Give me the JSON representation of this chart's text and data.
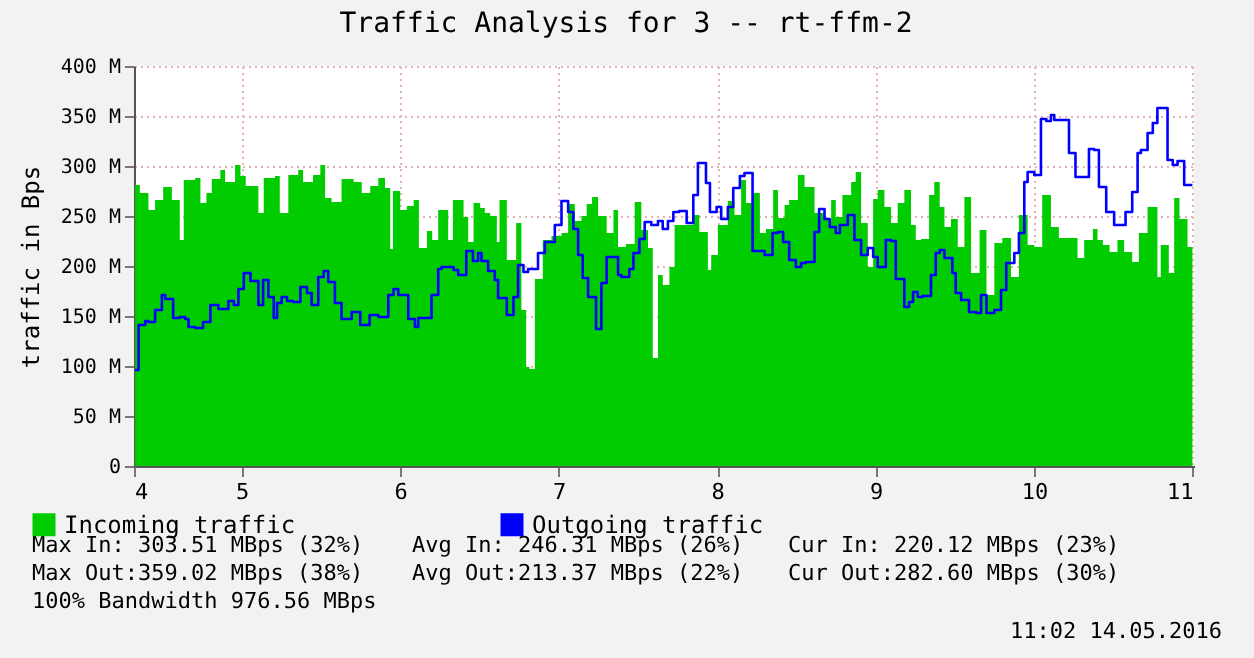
{
  "chart_data": {
    "type": "area",
    "title": "Traffic Analysis for 3 -- rt-ffm-2",
    "ylabel": "traffic in Bps",
    "xlim": [
      4.32,
      11.01
    ],
    "xticks": [
      {
        "value": 4.32,
        "label": "4"
      },
      {
        "value": 5,
        "label": "5"
      },
      {
        "value": 6,
        "label": "6"
      },
      {
        "value": 7,
        "label": "7"
      },
      {
        "value": 8,
        "label": "8"
      },
      {
        "value": 9,
        "label": "9"
      },
      {
        "value": 10,
        "label": "10"
      },
      {
        "value": 11,
        "label": "11"
      }
    ],
    "ylim": [
      0,
      400
    ],
    "yticks": [
      0,
      {
        "value": 50,
        "label": "50 M"
      },
      {
        "value": 100,
        "label": "100 M"
      },
      {
        "value": 150,
        "label": "150 M"
      },
      {
        "value": 200,
        "label": "200 M"
      },
      {
        "value": 250,
        "label": "250 M"
      },
      {
        "value": 300,
        "label": "300 M"
      },
      {
        "value": 350,
        "label": "350 M"
      },
      {
        "value": 400,
        "label": "400 M"
      }
    ],
    "grid": true,
    "legend": "bottom",
    "series": [
      {
        "name": "Incoming traffic",
        "color": "#00cc00",
        "x": [
          4.327,
          4.357,
          4.411,
          4.453,
          4.504,
          4.559,
          4.609,
          4.634,
          4.706,
          4.739,
          4.777,
          4.811,
          4.865,
          4.895,
          4.958,
          4.992,
          5.025,
          5.105,
          5.139,
          5.21,
          5.24,
          5.294,
          5.357,
          5.387,
          5.45,
          5.496,
          5.526,
          5.567,
          5.63,
          5.706,
          5.757,
          5.811,
          5.862,
          5.904,
          5.937,
          5.954,
          6.0,
          6.042,
          6.085,
          6.118,
          6.169,
          6.202,
          6.24,
          6.303,
          6.333,
          6.4,
          6.429,
          6.463,
          6.505,
          6.534,
          6.568,
          6.61,
          6.627,
          6.673,
          6.732,
          6.765,
          6.795,
          6.816,
          6.85,
          6.9,
          6.955,
          7.018,
          7.06,
          7.102,
          7.144,
          7.177,
          7.211,
          7.249,
          7.303,
          7.346,
          7.375,
          7.425,
          7.48,
          7.522,
          7.564,
          7.594,
          7.627,
          7.657,
          7.699,
          7.732,
          7.85,
          7.888,
          7.942,
          7.963,
          8.005,
          8.068,
          8.11,
          8.152,
          8.182,
          8.228,
          8.27,
          8.308,
          8.354,
          8.384,
          8.426,
          8.455,
          8.51,
          8.552,
          8.615,
          8.678,
          8.72,
          8.749,
          8.791,
          8.846,
          8.875,
          8.909,
          8.951,
          8.985,
          9.014,
          9.056,
          9.098,
          9.14,
          9.182,
          9.224,
          9.254,
          9.287,
          9.338,
          9.371,
          9.405,
          9.435,
          9.476,
          9.519,
          9.561,
          9.603,
          9.657,
          9.7,
          9.75,
          9.8,
          9.855,
          9.905,
          9.96,
          10.002,
          10.052,
          10.107,
          10.157,
          10.275,
          10.317,
          10.372,
          10.401,
          10.435,
          10.477,
          10.527,
          10.569,
          10.62,
          10.662,
          10.717,
          10.779,
          10.8,
          10.851,
          10.885,
          10.918,
          10.969,
          11.0
        ],
        "values": [
          281,
          273,
          256,
          266,
          279,
          266,
          226,
          286,
          288,
          263,
          273,
          287,
          296,
          284,
          301,
          290,
          280,
          253,
          288,
          290,
          253,
          291,
          296,
          284,
          291,
          301,
          268,
          264,
          287,
          284,
          273,
          280,
          288,
          278,
          217,
          275,
          256,
          260,
          266,
          218,
          235,
          226,
          256,
          226,
          266,
          249,
          224,
          263,
          258,
          253,
          250,
          224,
          266,
          206,
          243,
          156,
          99,
          97,
          187,
          226,
          230,
          233,
          262,
          245,
          250,
          262,
          269,
          250,
          233,
          256,
          219,
          222,
          264,
          236,
          218,
          108,
          191,
          181,
          199,
          241,
          251,
          234,
          196,
          211,
          241,
          265,
          251,
          286,
          263,
          273,
          233,
          237,
          276,
          248,
          261,
          266,
          291,
          279,
          253,
          246,
          266,
          249,
          271,
          284,
          294,
          243,
          199,
          267,
          276,
          259,
          243,
          263,
          276,
          241,
          226,
          227,
          271,
          284,
          259,
          239,
          247,
          219,
          269,
          193,
          236,
          171,
          223,
          228,
          189,
          251,
          221,
          219,
          271,
          239,
          228,
          208,
          226,
          237,
          226,
          221,
          214,
          226,
          214,
          204,
          233,
          259,
          189,
          221,
          193,
          268,
          247,
          219,
          219
        ]
      },
      {
        "name": "Outgoing traffic",
        "type": "step",
        "color": "#0000ff",
        "x": [
          4.327,
          4.349,
          4.391,
          4.411,
          4.453,
          4.496,
          4.517,
          4.567,
          4.609,
          4.643,
          4.664,
          4.706,
          4.756,
          4.802,
          4.853,
          4.916,
          4.95,
          4.979,
          5.013,
          5.055,
          5.105,
          5.135,
          5.168,
          5.202,
          5.223,
          5.252,
          5.286,
          5.324,
          5.37,
          5.412,
          5.441,
          5.483,
          5.517,
          5.546,
          5.588,
          5.63,
          5.694,
          5.748,
          5.807,
          5.862,
          5.925,
          5.958,
          5.988,
          6.051,
          6.093,
          6.114,
          6.198,
          6.24,
          6.261,
          6.337,
          6.366,
          6.417,
          6.459,
          6.492,
          6.513,
          6.555,
          6.597,
          6.618,
          6.673,
          6.715,
          6.744,
          6.778,
          6.807,
          6.87,
          6.913,
          6.976,
          7.018,
          7.06,
          7.093,
          7.123,
          7.152,
          7.186,
          7.236,
          7.27,
          7.303,
          7.375,
          7.396,
          7.446,
          7.472,
          7.51,
          7.543,
          7.585,
          7.627,
          7.657,
          7.69,
          7.724,
          7.761,
          7.808,
          7.85,
          7.879,
          7.93,
          7.955,
          7.997,
          8.026,
          8.068,
          8.102,
          8.144,
          8.173,
          8.224,
          8.3,
          8.35,
          8.384,
          8.417,
          8.455,
          8.497,
          8.531,
          8.56,
          8.615,
          8.644,
          8.678,
          8.711,
          8.749,
          8.775,
          8.825,
          8.867,
          8.909,
          8.951,
          8.985,
          9.014,
          9.065,
          9.098,
          9.128,
          9.182,
          9.212,
          9.237,
          9.266,
          9.296,
          9.35,
          9.38,
          9.405,
          9.435,
          9.485,
          9.506,
          9.54,
          9.59,
          9.636,
          9.666,
          9.7,
          9.75,
          9.792,
          9.825,
          9.876,
          9.905,
          9.939,
          9.96,
          10.002,
          10.044,
          10.078,
          10.107,
          10.128,
          10.221,
          10.262,
          10.347,
          10.38,
          10.41,
          10.456,
          10.506,
          10.578,
          10.62,
          10.654,
          10.675,
          10.717,
          10.75,
          10.779,
          10.843,
          10.876,
          10.906,
          10.948,
          11.0
        ],
        "values": [
          96,
          141,
          145,
          144,
          156,
          171,
          167,
          148,
          149,
          147,
          139,
          138,
          144,
          161,
          157,
          165,
          161,
          177,
          193,
          185,
          161,
          186,
          169,
          148,
          163,
          169,
          165,
          164,
          179,
          173,
          161,
          189,
          195,
          184,
          163,
          147,
          154,
          141,
          151,
          149,
          171,
          177,
          171,
          147,
          139,
          148,
          171,
          197,
          199,
          196,
          191,
          215,
          205,
          213,
          205,
          195,
          186,
          168,
          151,
          169,
          201,
          194,
          197,
          213,
          224,
          241,
          265,
          254,
          237,
          211,
          188,
          169,
          137,
          183,
          209,
          191,
          189,
          197,
          213,
          227,
          244,
          241,
          245,
          237,
          245,
          254,
          255,
          243,
          271,
          303,
          283,
          254,
          259,
          247,
          259,
          278,
          290,
          293,
          215,
          211,
          233,
          234,
          224,
          206,
          199,
          203,
          204,
          234,
          257,
          247,
          239,
          233,
          241,
          251,
          226,
          211,
          218,
          209,
          199,
          226,
          225,
          187,
          159,
          164,
          174,
          169,
          170,
          191,
          213,
          216,
          208,
          193,
          173,
          166,
          154,
          153,
          171,
          153,
          156,
          176,
          203,
          213,
          233,
          284,
          294,
          291,
          347,
          345,
          351,
          346,
          313,
          289,
          317,
          316,
          279,
          254,
          241,
          254,
          274,
          313,
          316,
          333,
          343,
          358,
          306,
          301,
          305,
          281,
          281
        ]
      }
    ],
    "annotations": [
      "Max In: 303.51 MBps (32%)",
      "Avg In: 246.31 MBps (26%)",
      "Cur In: 220.12 MBps (23%)",
      "Max Out:359.02 MBps (38%)",
      "Avg Out:213.37 MBps (22%)",
      "Cur Out:282.60 MBps (30%)",
      "100% Bandwidth 976.56 MBps",
      "11:02 14.05.2016"
    ]
  }
}
